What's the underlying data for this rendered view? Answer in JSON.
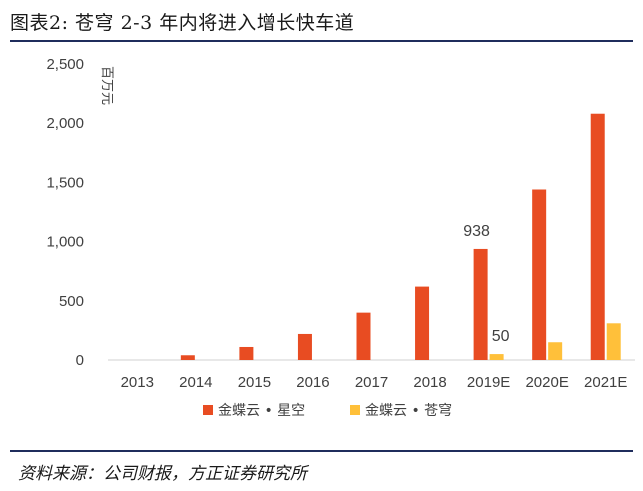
{
  "header": {
    "title": "图表2:  苍穹 2-3 年内将进入增长快车道"
  },
  "footer": {
    "source": "资料来源：公司财报，方正证券研究所"
  },
  "chart_data": {
    "type": "bar",
    "title": "",
    "xlabel": "",
    "ylabel": "百万元",
    "ylim": [
      0,
      2500
    ],
    "yticks": [
      0,
      500,
      1000,
      1500,
      2000,
      2500
    ],
    "ytick_labels": [
      "0",
      "500",
      "1,000",
      "1,500",
      "2,000",
      "2,500"
    ],
    "categories": [
      "2013",
      "2014",
      "2015",
      "2016",
      "2017",
      "2018",
      "2019E",
      "2020E",
      "2021E"
    ],
    "series": [
      {
        "name": "金蝶云 • 星空",
        "color": "#e84c22",
        "values": [
          0,
          40,
          110,
          220,
          400,
          620,
          938,
          1440,
          2080
        ]
      },
      {
        "name": "金蝶云 • 苍穹",
        "color": "#ffc03a",
        "values": [
          0,
          0,
          0,
          0,
          0,
          0,
          50,
          150,
          310
        ]
      }
    ],
    "data_labels": [
      {
        "series": 0,
        "index": 6,
        "text": "938"
      },
      {
        "series": 1,
        "index": 6,
        "text": "50"
      }
    ],
    "grid": false,
    "legend_position": "bottom"
  }
}
